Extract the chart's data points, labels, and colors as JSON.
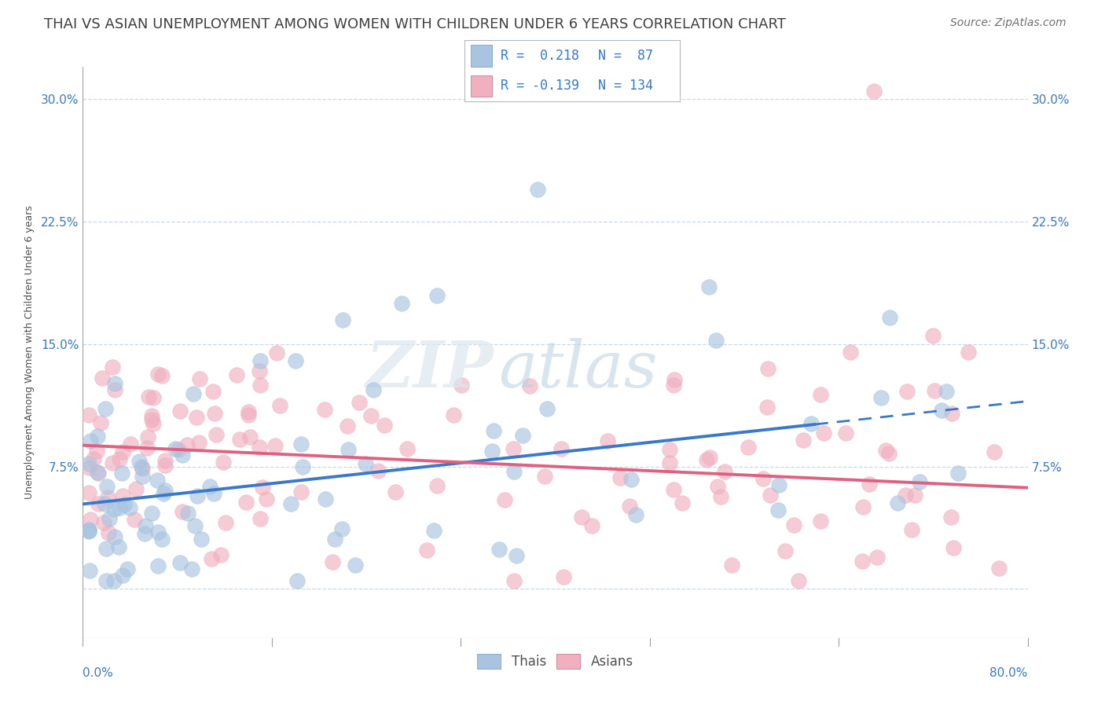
{
  "title": "THAI VS ASIAN UNEMPLOYMENT AMONG WOMEN WITH CHILDREN UNDER 6 YEARS CORRELATION CHART",
  "source": "Source: ZipAtlas.com",
  "ylabel": "Unemployment Among Women with Children Under 6 years",
  "ytick_labels": [
    "",
    "7.5%",
    "15.0%",
    "22.5%",
    "30.0%"
  ],
  "ytick_values": [
    0,
    0.075,
    0.15,
    0.225,
    0.3
  ],
  "xlim": [
    0.0,
    0.8
  ],
  "ylim": [
    -0.03,
    0.32
  ],
  "legend_r_thai": "R =  0.218",
  "legend_n_thai": "N =  87",
  "legend_r_asian": "R = -0.139",
  "legend_n_asian": "N = 134",
  "thai_color": "#a8c4e0",
  "asian_color": "#f0b0c0",
  "thai_line_color": "#3a78c9",
  "asian_line_color": "#e06080",
  "background_color": "#ffffff",
  "grid_color": "#c8d8ec",
  "title_color": "#404040",
  "title_fontsize": 13,
  "source_fontsize": 10,
  "axis_label_fontsize": 9,
  "tick_fontsize": 11,
  "legend_fontsize": 13,
  "thai_line_solid_end": 0.62,
  "thai_line_y_start": 0.052,
  "thai_line_y_end": 0.115,
  "asian_line_y_start": 0.088,
  "asian_line_y_end": 0.062
}
